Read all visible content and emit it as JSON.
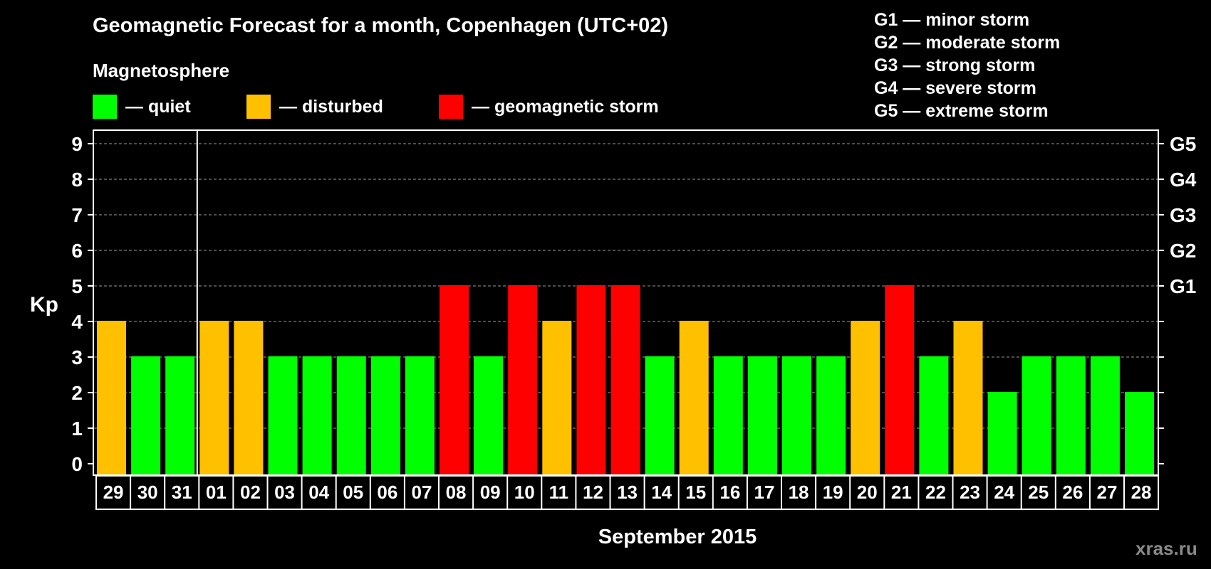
{
  "chart_data": {
    "type": "bar",
    "title": "Geomagnetic Forecast for a month, Copenhagen (UTC+02)",
    "subtitle": "Magnetosphere",
    "xlabel": "September 2015",
    "ylabel": "Kp",
    "ylim": [
      0,
      9
    ],
    "grid": true,
    "legend": [
      {
        "label": "— quiet",
        "color": "#00ff00"
      },
      {
        "label": "— disturbed",
        "color": "#ffc000"
      },
      {
        "label": "— geomagnetic storm",
        "color": "#ff0000"
      }
    ],
    "storm_levels": [
      {
        "kp": 5,
        "label": "G1"
      },
      {
        "kp": 6,
        "label": "G2"
      },
      {
        "kp": 7,
        "label": "G3"
      },
      {
        "kp": 8,
        "label": "G4"
      },
      {
        "kp": 9,
        "label": "G5"
      }
    ],
    "storm_legend": [
      "G1 — minor storm",
      "G2 — moderate storm",
      "G3 — strong storm",
      "G4 — severe storm",
      "G5 — extreme storm"
    ],
    "y_ticks": [
      "0",
      "1",
      "2",
      "3",
      "4",
      "5",
      "6",
      "7",
      "8",
      "9"
    ],
    "categories": [
      "29",
      "30",
      "31",
      "01",
      "02",
      "03",
      "04",
      "05",
      "06",
      "07",
      "08",
      "09",
      "10",
      "11",
      "12",
      "13",
      "14",
      "15",
      "16",
      "17",
      "18",
      "19",
      "20",
      "21",
      "22",
      "23",
      "24",
      "25",
      "26",
      "27",
      "28"
    ],
    "values": [
      4,
      3,
      3,
      4,
      4,
      3,
      3,
      3,
      3,
      3,
      5,
      3,
      5,
      4,
      5,
      5,
      3,
      4,
      3,
      3,
      3,
      3,
      4,
      5,
      3,
      4,
      2,
      3,
      3,
      3,
      2
    ],
    "month_separator_after": "31",
    "colors": {
      "quiet": "#00ff00",
      "disturbed": "#ffc000",
      "storm": "#ff0000"
    }
  },
  "watermark": "xras.ru"
}
